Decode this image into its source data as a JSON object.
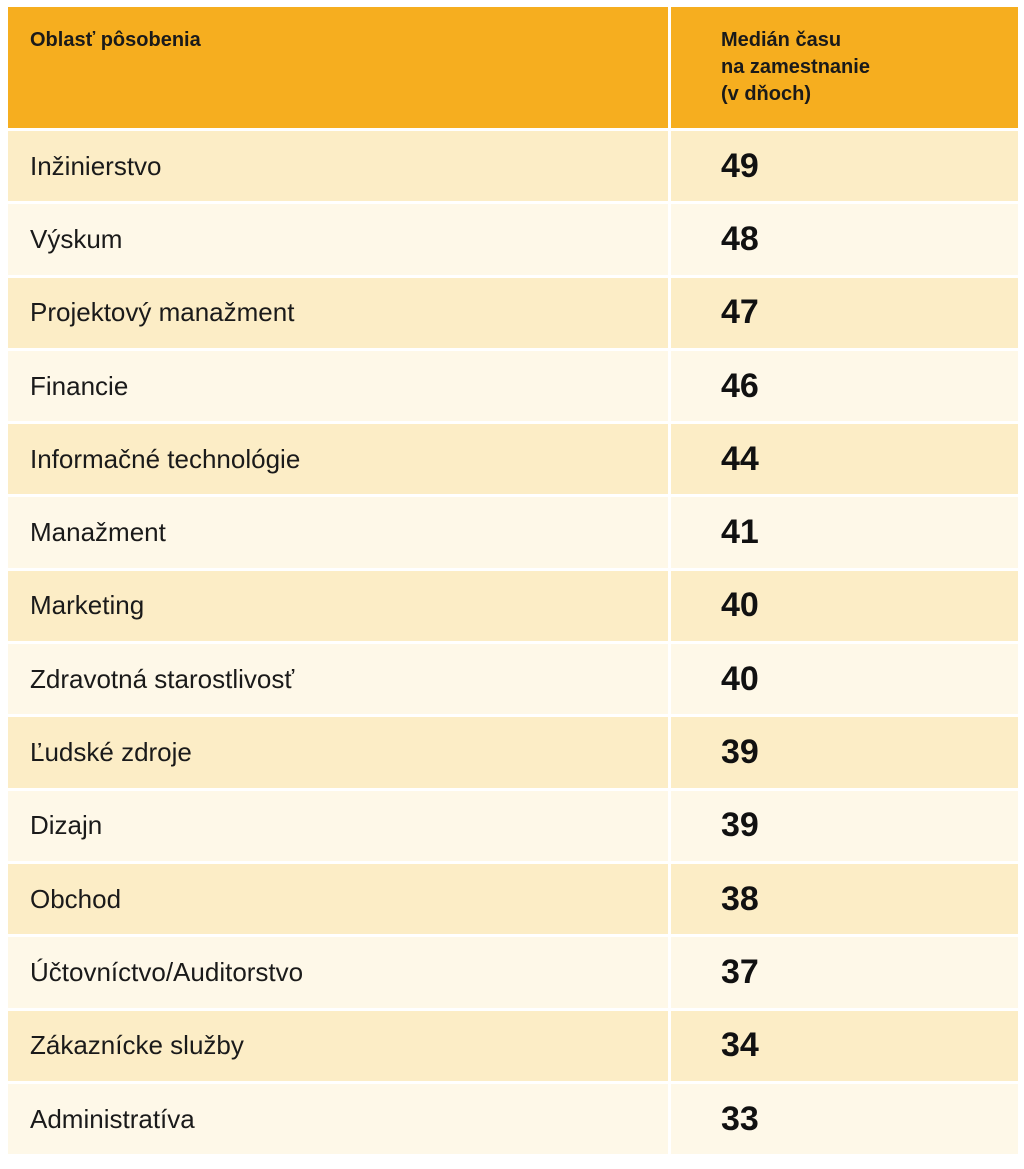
{
  "table": {
    "header": {
      "area_label": "Oblasť pôsobenia",
      "median_label_lines": [
        "Medián času",
        "na zamestnanie",
        "(v dňoch)"
      ]
    }
  },
  "colors": {
    "header_bg": "#f6ae1f",
    "row_dark": "#fcedc6",
    "row_light": "#fef8e8"
  },
  "chart_data": {
    "type": "table",
    "columns": [
      "Oblasť pôsobenia",
      "Medián času na zamestnanie (v dňoch)"
    ],
    "rows": [
      {
        "area": "Inžinierstvo",
        "value": 49
      },
      {
        "area": "Výskum",
        "value": 48
      },
      {
        "area": "Projektový manažment",
        "value": 47
      },
      {
        "area": "Financie",
        "value": 46
      },
      {
        "area": "Informačné technológie",
        "value": 44
      },
      {
        "area": "Manažment",
        "value": 41
      },
      {
        "area": "Marketing",
        "value": 40
      },
      {
        "area": "Zdravotná starostlivosť",
        "value": 40
      },
      {
        "area": "Ľudské zdroje",
        "value": 39
      },
      {
        "area": "Dizajn",
        "value": 39
      },
      {
        "area": "Obchod",
        "value": 38
      },
      {
        "area": "Účtovníctvo/Auditorstvo",
        "value": 37
      },
      {
        "area": "Zákaznícke služby",
        "value": 34
      },
      {
        "area": "Administratíva",
        "value": 33
      }
    ]
  }
}
